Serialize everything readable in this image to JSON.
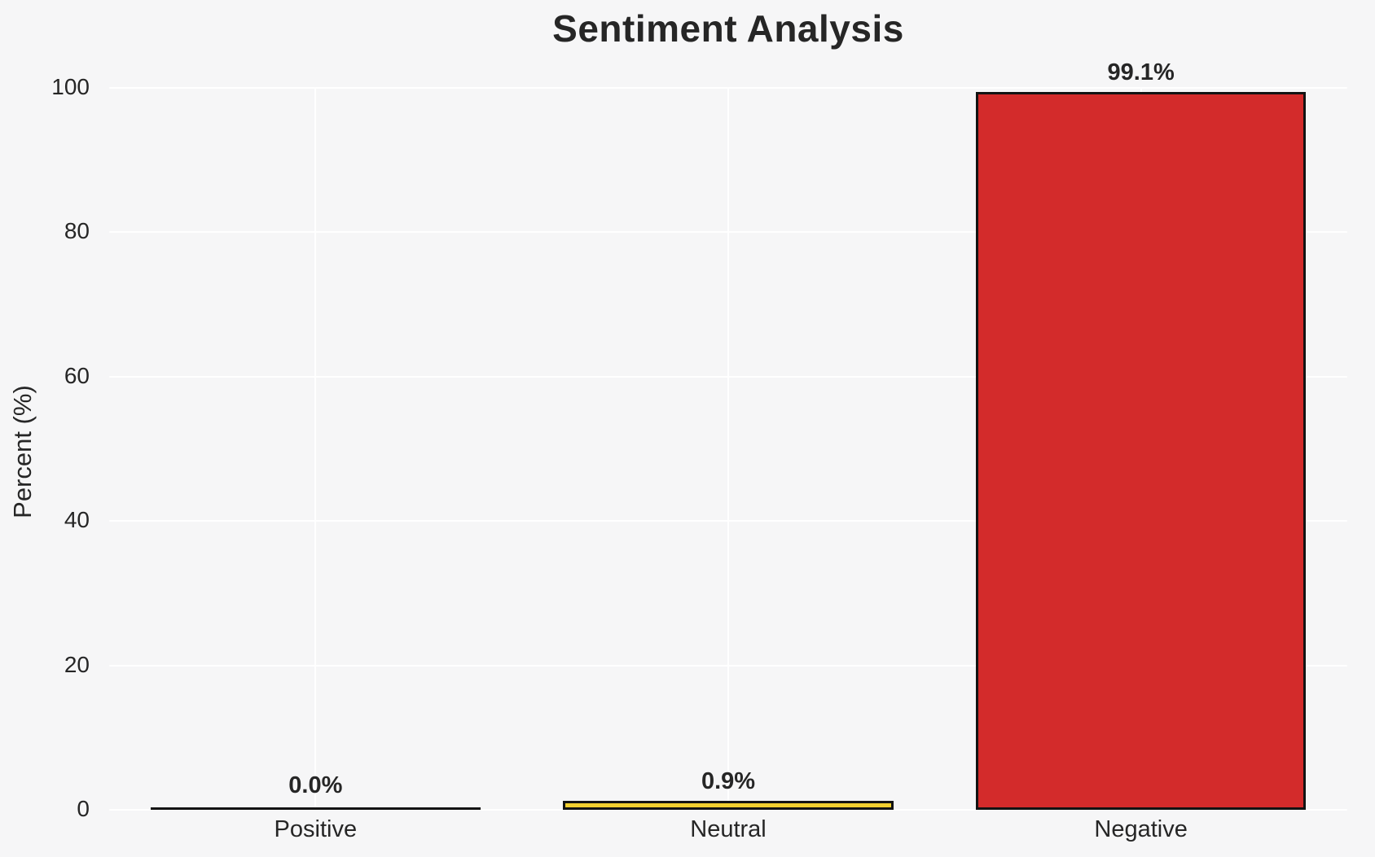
{
  "chart_data": {
    "type": "bar",
    "title": "Sentiment Analysis",
    "xlabel": "",
    "ylabel": "Percent (%)",
    "categories": [
      "Positive",
      "Neutral",
      "Negative"
    ],
    "values": [
      0.0,
      0.9,
      99.1
    ],
    "bar_labels": [
      "0.0%",
      "0.9%",
      "99.1%"
    ],
    "bar_colors": [
      "none",
      "#f2cf2f",
      "#d32b2b"
    ],
    "bar_edge_color": "#131313",
    "yticks": [
      0,
      20,
      40,
      60,
      80,
      100
    ],
    "ylim": [
      0,
      100
    ],
    "bar_width_fraction": 0.8,
    "grid": true,
    "grid_color": "#ffffff",
    "background_color": "#f6f6f7",
    "text_color": "#262626",
    "legend_position": "none"
  }
}
